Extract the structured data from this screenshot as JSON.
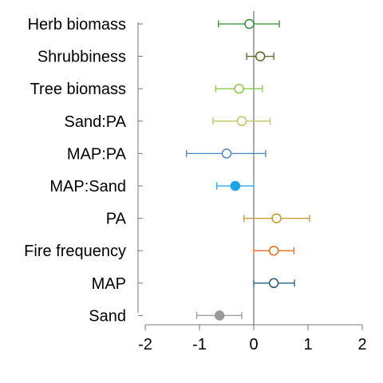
{
  "chart_data": {
    "type": "scatter",
    "title": "",
    "xlabel": "",
    "ylabel": "",
    "xlim": [
      -2,
      2
    ],
    "xticks": [
      -2,
      -1,
      0,
      1,
      2
    ],
    "xtick_labels": [
      "-2",
      "-1",
      "0",
      "1",
      "2"
    ],
    "reference_line_x": 0,
    "grid": false,
    "legend": "none",
    "categories": [
      "Herb biomass",
      "Shrubbiness",
      "Tree biomass",
      "Sand:PA",
      "MAP:PA",
      "MAP:Sand",
      "PA",
      "Fire frequency",
      "MAP",
      "Sand"
    ],
    "points": [
      {
        "estimate": -0.08,
        "lower": -0.65,
        "upper": 0.47,
        "color": "#2e8b2e",
        "filled": false
      },
      {
        "estimate": 0.12,
        "lower": -0.13,
        "upper": 0.37,
        "color": "#4d6b1f",
        "filled": false
      },
      {
        "estimate": -0.27,
        "lower": -0.7,
        "upper": 0.16,
        "color": "#8cc84b",
        "filled": false
      },
      {
        "estimate": -0.22,
        "lower": -0.75,
        "upper": 0.3,
        "color": "#c2c46a",
        "filled": false
      },
      {
        "estimate": -0.5,
        "lower": -1.24,
        "upper": 0.22,
        "color": "#4a86c5",
        "filled": false
      },
      {
        "estimate": -0.34,
        "lower": -0.68,
        "upper": 0.0,
        "color": "#1aa3e8",
        "filled": true
      },
      {
        "estimate": 0.42,
        "lower": -0.18,
        "upper": 1.03,
        "color": "#c8962a",
        "filled": false
      },
      {
        "estimate": 0.37,
        "lower": 0.0,
        "upper": 0.74,
        "color": "#e36c1f",
        "filled": false
      },
      {
        "estimate": 0.37,
        "lower": 0.0,
        "upper": 0.75,
        "color": "#1f5c7a",
        "filled": false
      },
      {
        "estimate": -0.63,
        "lower": -1.05,
        "upper": -0.22,
        "color": "#9a9a9a",
        "filled": true
      }
    ]
  }
}
